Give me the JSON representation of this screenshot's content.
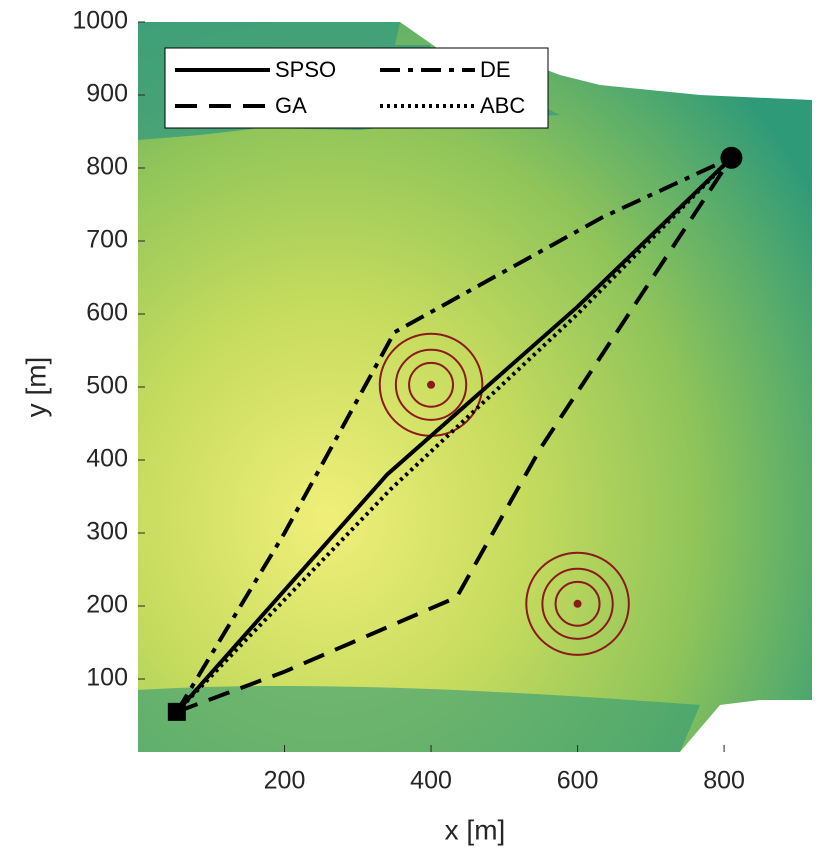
{
  "chart_data": {
    "type": "line",
    "xlabel": "x [m]",
    "ylabel": "y [m]",
    "xlim": [
      0,
      920
    ],
    "ylim": [
      0,
      1000
    ],
    "xticks": [
      200,
      400,
      600,
      800
    ],
    "yticks": [
      100,
      200,
      300,
      400,
      500,
      600,
      700,
      800,
      900,
      1000
    ],
    "grid": false,
    "legend_location": "top-left",
    "series": [
      {
        "name": "SPSO",
        "color": "#000000",
        "linestyle": "solid",
        "x": [
          53,
          340,
          600,
          810
        ],
        "values": [
          55,
          380,
          610,
          814
        ]
      },
      {
        "name": "GA",
        "color": "#000000",
        "linestyle": "dashed",
        "x": [
          53,
          200,
          435,
          550,
          810
        ],
        "values": [
          55,
          110,
          212,
          417,
          814
        ]
      },
      {
        "name": "DE",
        "color": "#000000",
        "linestyle": "dashdot",
        "x": [
          53,
          200,
          350,
          633,
          810
        ],
        "values": [
          55,
          300,
          575,
          732,
          814
        ]
      },
      {
        "name": "ABC",
        "color": "#000000",
        "linestyle": "dotted",
        "x": [
          53,
          345,
          600,
          810
        ],
        "values": [
          55,
          360,
          600,
          814
        ]
      }
    ],
    "start": {
      "x": 53,
      "y": 55
    },
    "goal": {
      "x": 810,
      "y": 814
    },
    "threats": [
      {
        "x": 400,
        "y": 503,
        "radii": [
          30,
          48,
          70
        ],
        "color": "#8b1a1a"
      },
      {
        "x": 600,
        "y": 203,
        "radii": [
          30,
          48,
          70
        ],
        "color": "#8b1a1a"
      }
    ]
  }
}
